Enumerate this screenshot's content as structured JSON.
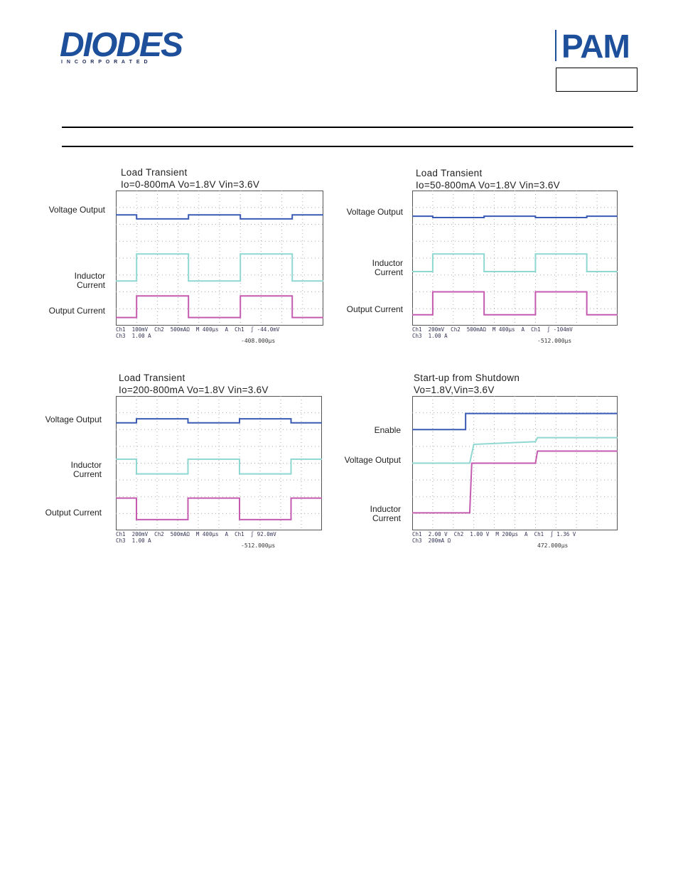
{
  "header": {
    "logo": "DIODES",
    "logo_sub": "I N C O R P O R A T E D",
    "brand": "PAM"
  },
  "scopes": [
    {
      "title": "Load Transient",
      "subtitle": "Io=0-800mA Vo=1.8V Vin=3.6V",
      "labels": [
        "Voltage Output",
        "Inductor Current",
        "Output Current"
      ],
      "readout": [
        "Ch1  100mV  Ch2  500mAΩ  M 400µs  A  Ch1  ∫ -44.0mV",
        "Ch3  1.00 A"
      ],
      "trigger": "-408.000µs"
    },
    {
      "title": "Load Transient",
      "subtitle": "Io=50-800mA Vo=1.8V Vin=3.6V",
      "labels": [
        "Voltage Output",
        "Inductor Current",
        "Output Current"
      ],
      "readout": [
        "Ch1  200mV  Ch2  500mAΩ  M 400µs  A  Ch1  ∫ -104mV",
        "Ch3  1.00 A"
      ],
      "trigger": "-512.000µs"
    },
    {
      "title": "Load Transient",
      "subtitle": "Io=200-800mA Vo=1.8V Vin=3.6V",
      "labels": [
        "Voltage Output",
        "Inductor Current",
        "Output Current"
      ],
      "readout": [
        "Ch1  200mV  Ch2  500mAΩ  M 400µs  A  Ch1  ∫ 92.0mV",
        "Ch3  1.00 A"
      ],
      "trigger": "-512.000µs"
    },
    {
      "title": "Start-up from Shutdown",
      "subtitle": "Vo=1.8V,Vin=3.6V",
      "labels": [
        "Enable",
        "Voltage Output",
        "Inductor Current"
      ],
      "readout": [
        "Ch1  2.00 V  Ch2  1.00 V  M 200µs  A  Ch1  ∫ 1.36 V",
        "Ch3  200mA Ω"
      ],
      "trigger": "472.000µs"
    }
  ]
}
